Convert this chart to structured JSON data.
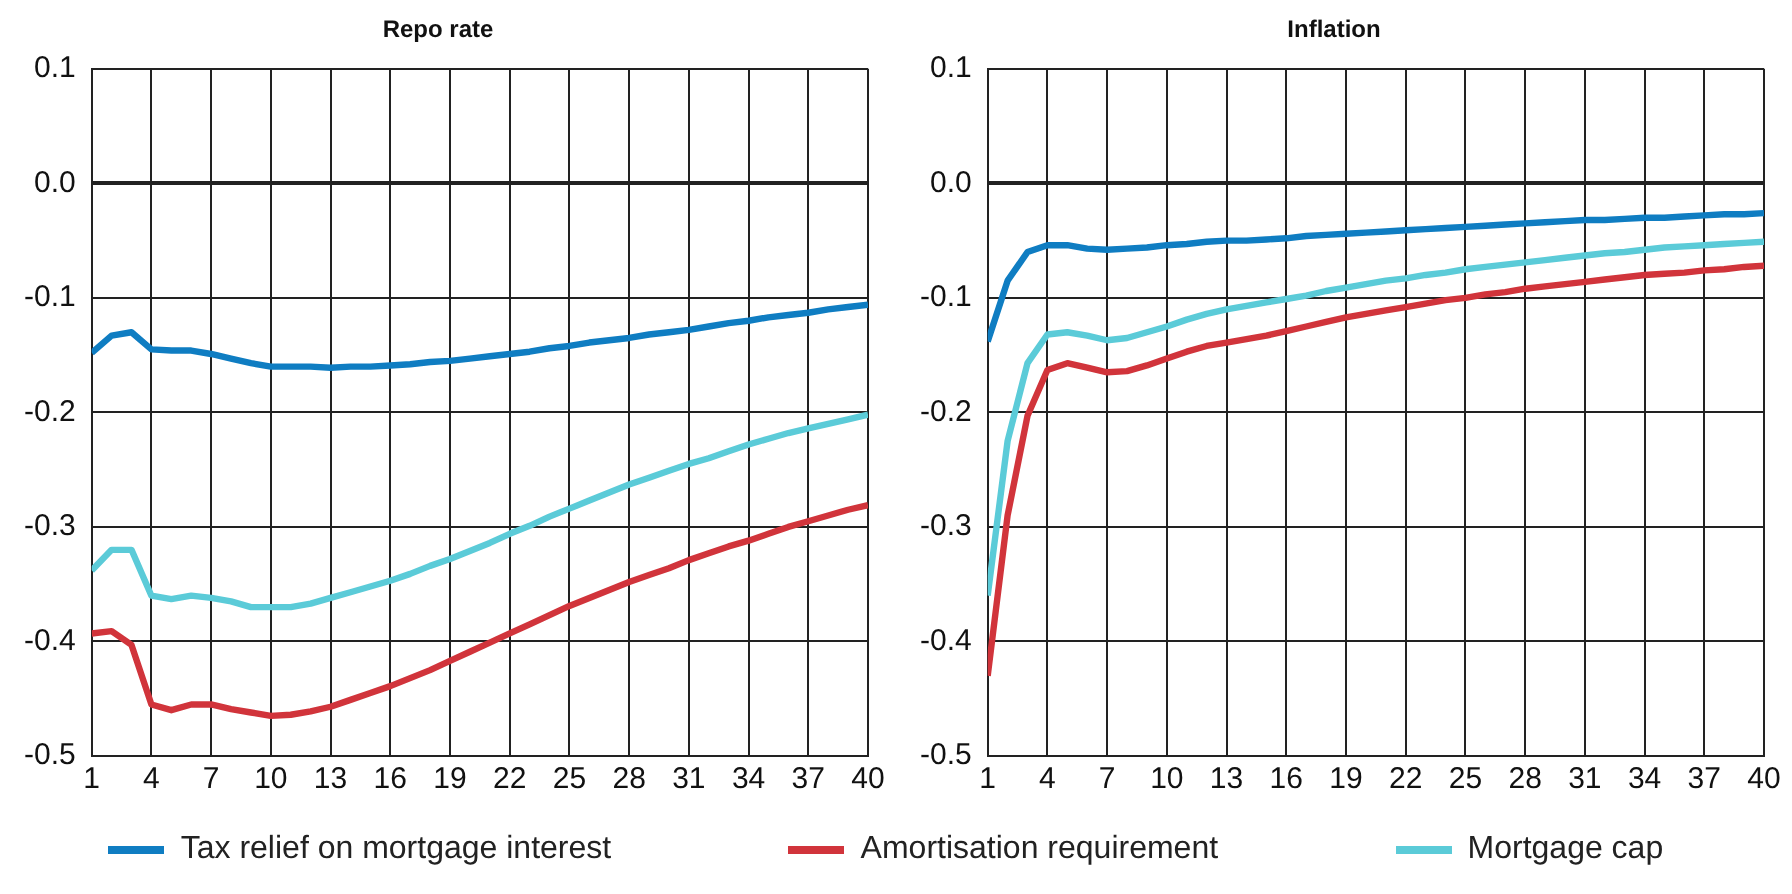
{
  "chart_data": [
    {
      "type": "line",
      "title": "Repo rate",
      "legend": "bottom",
      "grid": true,
      "marker": "none",
      "line_style": "solid",
      "x": [
        1,
        2,
        3,
        4,
        5,
        6,
        7,
        8,
        9,
        10,
        11,
        12,
        13,
        14,
        15,
        16,
        17,
        18,
        19,
        20,
        21,
        22,
        23,
        24,
        25,
        26,
        27,
        28,
        29,
        30,
        31,
        32,
        33,
        34,
        35,
        36,
        37,
        38,
        39,
        40
      ],
      "xlim": [
        1,
        40
      ],
      "xticks": [
        1,
        4,
        7,
        10,
        13,
        16,
        19,
        22,
        25,
        28,
        31,
        34,
        37,
        40
      ],
      "ylim": [
        -0.5,
        0.1
      ],
      "yticks": [
        {
          "value": -0.5,
          "label": "-0.5"
        },
        {
          "value": -0.4,
          "label": "-0.4"
        },
        {
          "value": -0.3,
          "label": "-0.3"
        },
        {
          "value": -0.2,
          "label": "-0.2"
        },
        {
          "value": -0.1,
          "label": "-0.1"
        },
        {
          "value": 0,
          "label": "0.0"
        },
        {
          "value": 0.1,
          "label": "0.1"
        }
      ],
      "series": [
        {
          "name": "Tax relief on mortgage interest",
          "color": "#0f7dc2",
          "values": [
            -0.148,
            -0.133,
            -0.13,
            -0.145,
            -0.146,
            -0.146,
            -0.149,
            -0.153,
            -0.157,
            -0.16,
            -0.16,
            -0.16,
            -0.161,
            -0.16,
            -0.16,
            -0.159,
            -0.158,
            -0.156,
            -0.155,
            -0.153,
            -0.151,
            -0.149,
            -0.147,
            -0.144,
            -0.142,
            -0.139,
            -0.137,
            -0.135,
            -0.132,
            -0.13,
            -0.128,
            -0.125,
            -0.122,
            -0.12,
            -0.117,
            -0.115,
            -0.113,
            -0.11,
            -0.108,
            -0.106
          ]
        },
        {
          "name": "Amortisation requirement",
          "color": "#d1343b",
          "values": [
            -0.393,
            -0.391,
            -0.403,
            -0.455,
            -0.46,
            -0.455,
            -0.455,
            -0.459,
            -0.462,
            -0.465,
            -0.464,
            -0.461,
            -0.457,
            -0.451,
            -0.445,
            -0.439,
            -0.432,
            -0.425,
            -0.417,
            -0.409,
            -0.401,
            -0.393,
            -0.385,
            -0.377,
            -0.369,
            -0.362,
            -0.355,
            -0.348,
            -0.342,
            -0.336,
            -0.329,
            -0.323,
            -0.317,
            -0.312,
            -0.306,
            -0.3,
            -0.295,
            -0.29,
            -0.285,
            -0.281
          ]
        },
        {
          "name": "Mortgage cap",
          "color": "#5bcbd8",
          "values": [
            -0.338,
            -0.32,
            -0.32,
            -0.36,
            -0.363,
            -0.36,
            -0.362,
            -0.365,
            -0.37,
            -0.37,
            -0.37,
            -0.367,
            -0.362,
            -0.357,
            -0.352,
            -0.347,
            -0.341,
            -0.334,
            -0.328,
            -0.321,
            -0.314,
            -0.306,
            -0.299,
            -0.291,
            -0.284,
            -0.277,
            -0.27,
            -0.263,
            -0.257,
            -0.251,
            -0.245,
            -0.24,
            -0.234,
            -0.228,
            -0.223,
            -0.218,
            -0.214,
            -0.21,
            -0.206,
            -0.202
          ]
        }
      ]
    },
    {
      "type": "line",
      "title": "Inflation",
      "grid": true,
      "marker": "none",
      "line_style": "solid",
      "x": [
        1,
        2,
        3,
        4,
        5,
        6,
        7,
        8,
        9,
        10,
        11,
        12,
        13,
        14,
        15,
        16,
        17,
        18,
        19,
        20,
        21,
        22,
        23,
        24,
        25,
        26,
        27,
        28,
        29,
        30,
        31,
        32,
        33,
        34,
        35,
        36,
        37,
        38,
        39,
        40
      ],
      "xlim": [
        1,
        40
      ],
      "xticks": [
        1,
        4,
        7,
        10,
        13,
        16,
        19,
        22,
        25,
        28,
        31,
        34,
        37,
        40
      ],
      "ylim": [
        -0.5,
        0.1
      ],
      "yticks": [
        {
          "value": -0.5,
          "label": "-0.5"
        },
        {
          "value": -0.4,
          "label": "-0.4"
        },
        {
          "value": -0.3,
          "label": "-0.3"
        },
        {
          "value": -0.2,
          "label": "-0.2"
        },
        {
          "value": -0.1,
          "label": "-0.1"
        },
        {
          "value": 0,
          "label": "0.0"
        },
        {
          "value": 0.1,
          "label": "0.1"
        }
      ],
      "series": [
        {
          "color": "#0f7dc2",
          "values": [
            -0.138,
            -0.085,
            -0.06,
            -0.054,
            -0.054,
            -0.057,
            -0.058,
            -0.057,
            -0.056,
            -0.054,
            -0.053,
            -0.051,
            -0.05,
            -0.05,
            -0.049,
            -0.048,
            -0.046,
            -0.045,
            -0.044,
            -0.043,
            -0.042,
            -0.041,
            -0.04,
            -0.039,
            -0.038,
            -0.037,
            -0.036,
            -0.035,
            -0.034,
            -0.033,
            -0.032,
            -0.032,
            -0.031,
            -0.03,
            -0.03,
            -0.029,
            -0.028,
            -0.027,
            -0.027,
            -0.026
          ]
        },
        {
          "color": "#d1343b",
          "values": [
            -0.43,
            -0.29,
            -0.203,
            -0.163,
            -0.157,
            -0.161,
            -0.165,
            -0.164,
            -0.159,
            -0.153,
            -0.147,
            -0.142,
            -0.139,
            -0.136,
            -0.133,
            -0.129,
            -0.125,
            -0.121,
            -0.117,
            -0.114,
            -0.111,
            -0.108,
            -0.105,
            -0.102,
            -0.1,
            -0.097,
            -0.095,
            -0.092,
            -0.09,
            -0.088,
            -0.086,
            -0.084,
            -0.082,
            -0.08,
            -0.079,
            -0.078,
            -0.076,
            -0.075,
            -0.073,
            -0.072
          ]
        },
        {
          "color": "#5bcbd8",
          "values": [
            -0.36,
            -0.225,
            -0.157,
            -0.132,
            -0.13,
            -0.133,
            -0.137,
            -0.135,
            -0.13,
            -0.125,
            -0.119,
            -0.114,
            -0.11,
            -0.107,
            -0.104,
            -0.101,
            -0.098,
            -0.094,
            -0.091,
            -0.088,
            -0.085,
            -0.083,
            -0.08,
            -0.078,
            -0.075,
            -0.073,
            -0.071,
            -0.069,
            -0.067,
            -0.065,
            -0.063,
            -0.061,
            -0.06,
            -0.058,
            -0.056,
            -0.055,
            -0.054,
            -0.053,
            -0.052,
            -0.051
          ]
        }
      ]
    }
  ]
}
